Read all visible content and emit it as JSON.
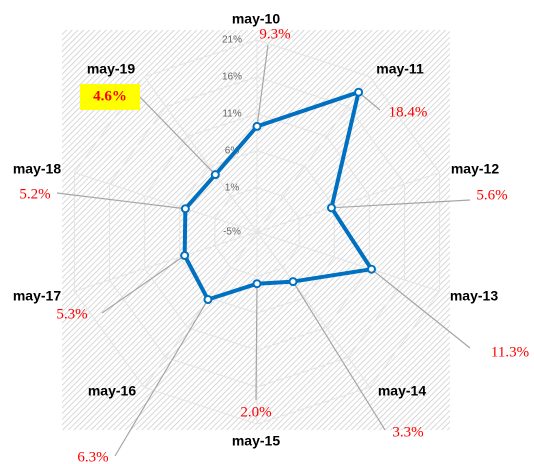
{
  "chart_data": {
    "type": "radar",
    "categories": [
      "may-10",
      "may-11",
      "may-12",
      "may-13",
      "may-14",
      "may-15",
      "may-16",
      "may-17",
      "may-18",
      "may-19"
    ],
    "values": [
      9.3,
      18.4,
      5.6,
      11.3,
      3.3,
      2.0,
      6.3,
      5.3,
      5.2,
      4.6
    ],
    "value_labels": [
      "9.3%",
      "18.4%",
      "5.6%",
      "11.3%",
      "3.3%",
      "2.0%",
      "6.3%",
      "5.3%",
      "5.2%",
      "4.6%"
    ],
    "color": "#0070c0",
    "rlim": [
      -5,
      21
    ],
    "rticks": [
      {
        "value": -5,
        "label": "-5%"
      },
      {
        "value": 1,
        "label": "1%"
      },
      {
        "value": 6,
        "label": "6%"
      },
      {
        "value": 11,
        "label": "11%"
      },
      {
        "value": 16,
        "label": "16%"
      },
      {
        "value": 21,
        "label": "21%"
      }
    ],
    "grid": true
  }
}
